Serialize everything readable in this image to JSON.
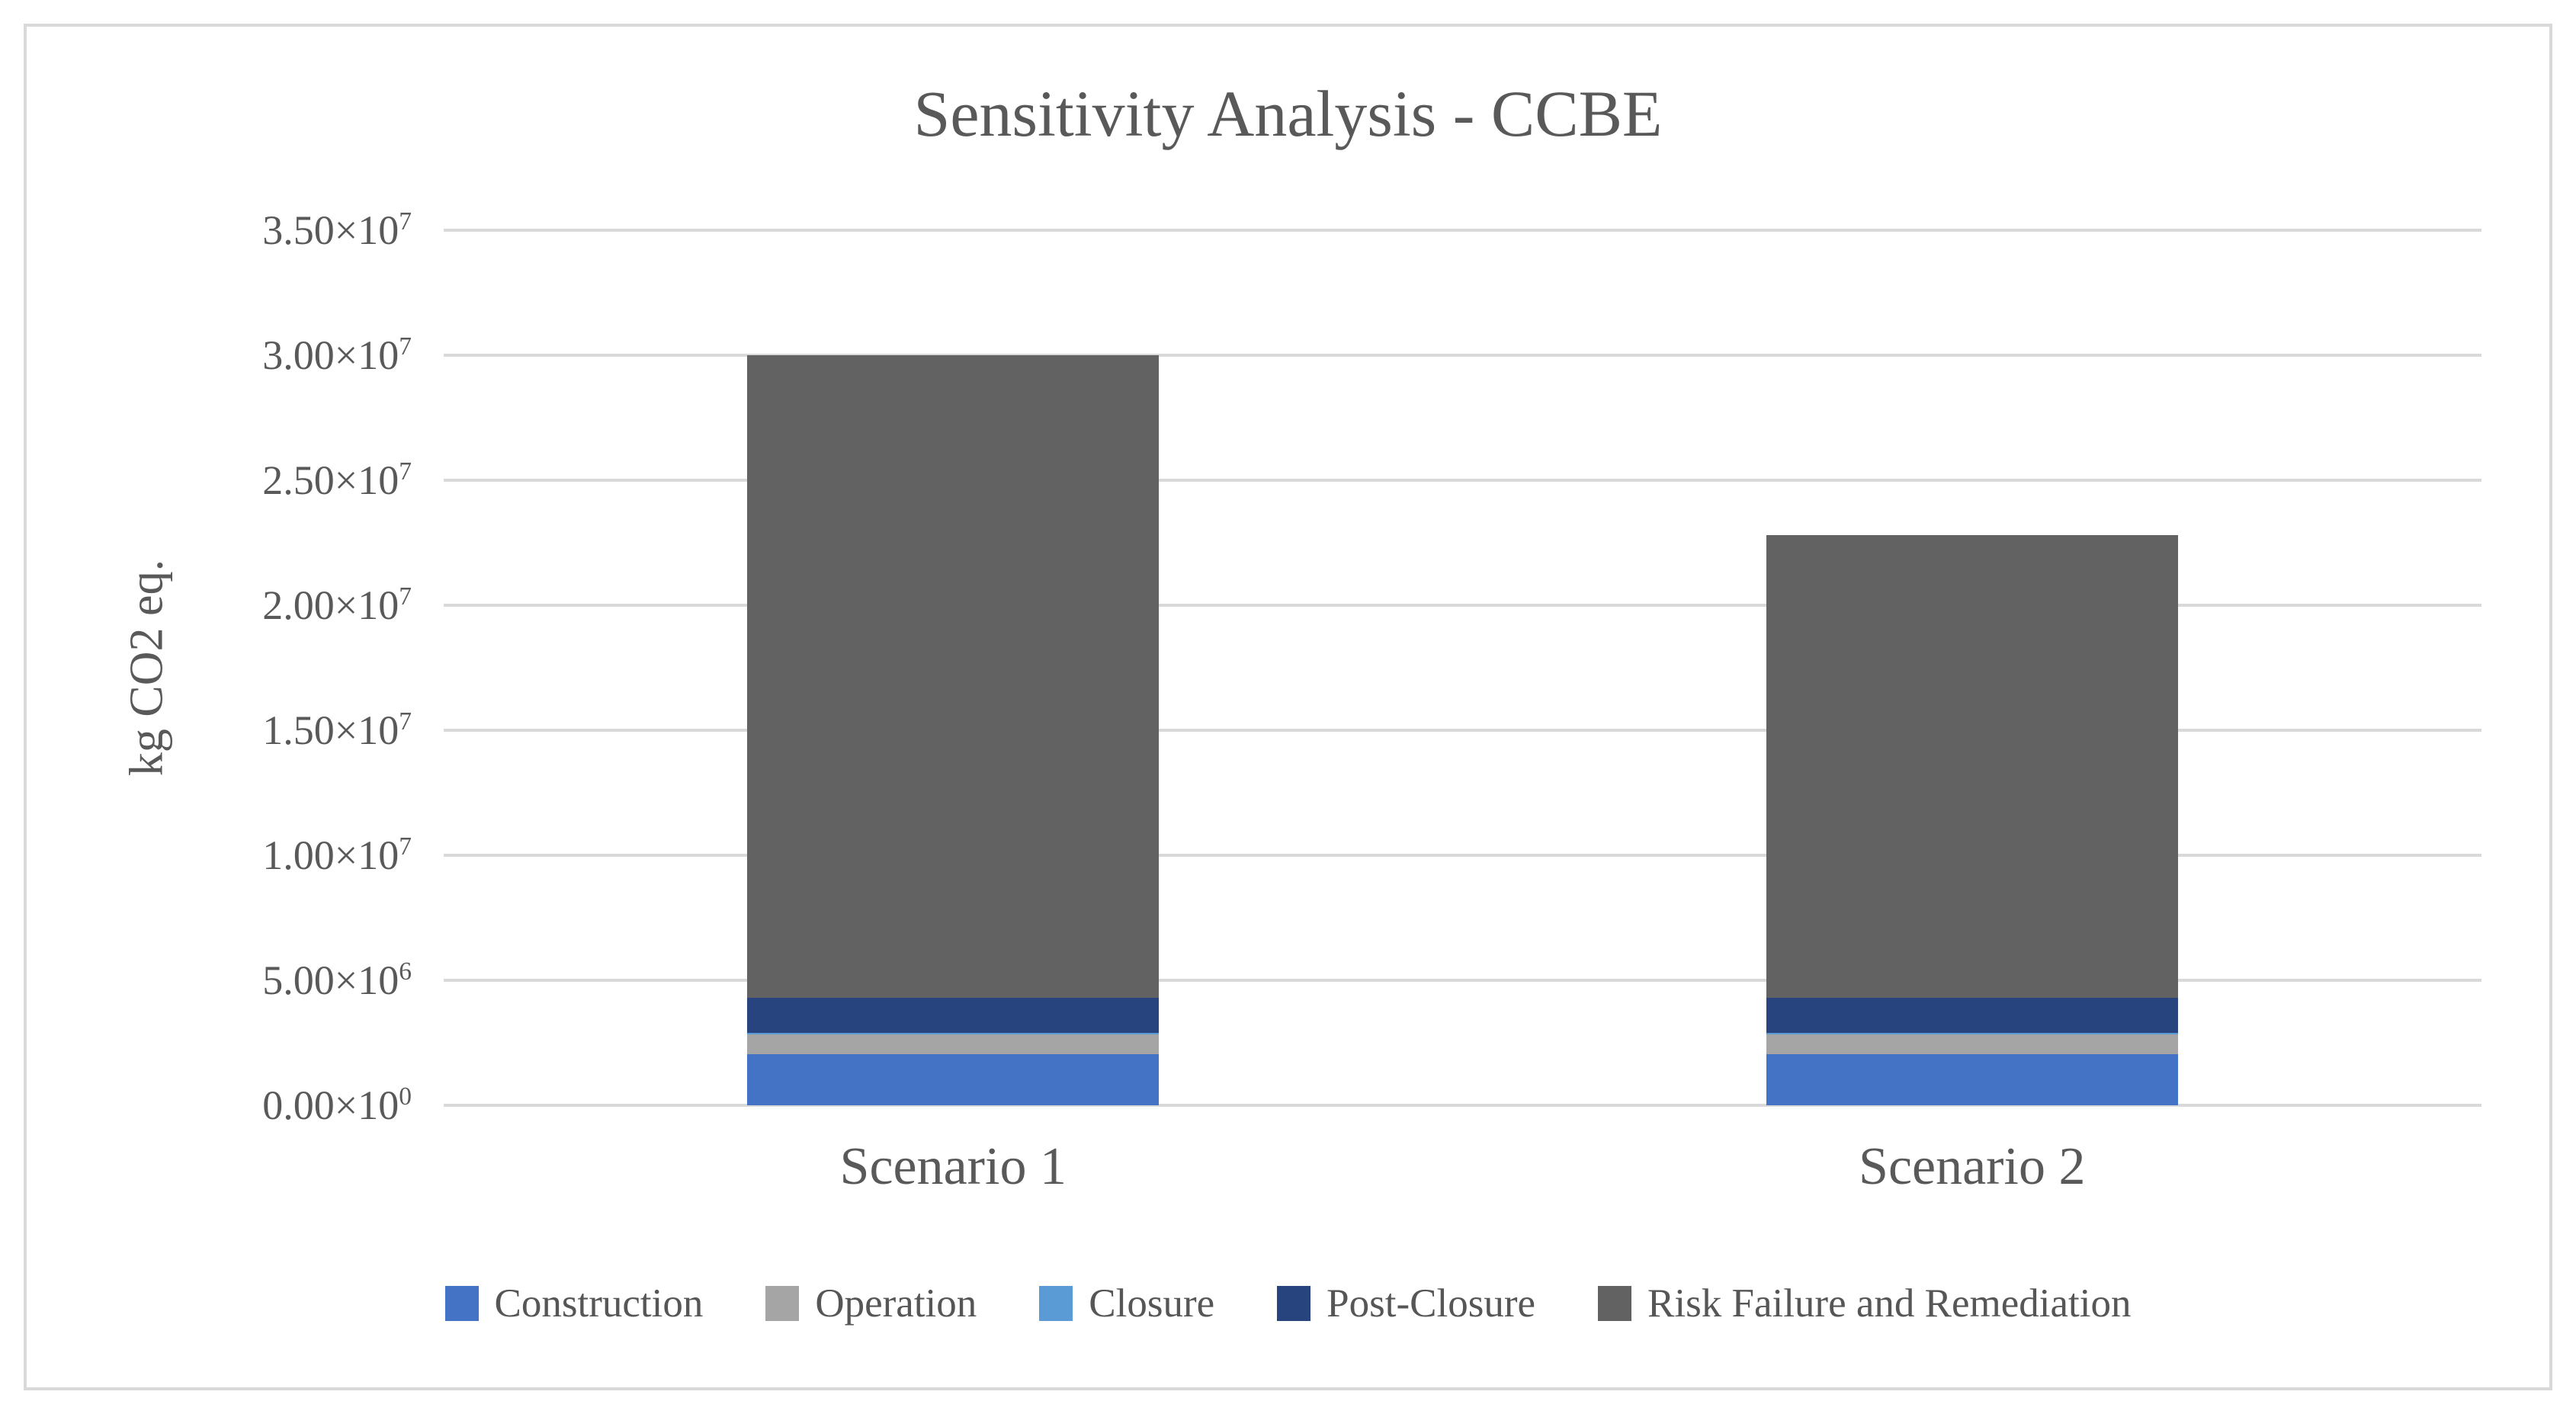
{
  "figure": {
    "background_color": "#FFFFFF",
    "border_color": "#D9D9D9"
  },
  "chart_data": {
    "type": "bar",
    "stacked": true,
    "title": "Sensitivity Analysis - CCBE",
    "xlabel": "",
    "ylabel": "kg CO2 eq.",
    "categories": [
      "Scenario 1",
      "Scenario 2"
    ],
    "series": [
      {
        "name": "Construction",
        "color": "#4472C4",
        "values": [
          2050000,
          2050000
        ]
      },
      {
        "name": "Operation",
        "color": "#A5A5A5",
        "values": [
          780000,
          780000
        ]
      },
      {
        "name": "Closure",
        "color": "#5B9BD5",
        "values": [
          70000,
          70000
        ]
      },
      {
        "name": "Post-Closure",
        "color": "#27447E",
        "values": [
          1400000,
          1400000
        ]
      },
      {
        "name": "Risk Failure and Remediation",
        "color": "#626262",
        "values": [
          25700000,
          18500000
        ]
      }
    ],
    "totals": [
      30000000,
      22800000
    ],
    "ylim": [
      0,
      35000000
    ],
    "y_ticks": [
      {
        "mantissa": "0.00×10",
        "exp": "0",
        "value": 0
      },
      {
        "mantissa": "5.00×10",
        "exp": "6",
        "value": 5000000
      },
      {
        "mantissa": "1.00×10",
        "exp": "7",
        "value": 10000000
      },
      {
        "mantissa": "1.50×10",
        "exp": "7",
        "value": 15000000
      },
      {
        "mantissa": "2.00×10",
        "exp": "7",
        "value": 20000000
      },
      {
        "mantissa": "2.50×10",
        "exp": "7",
        "value": 25000000
      },
      {
        "mantissa": "3.00×10",
        "exp": "7",
        "value": 30000000
      },
      {
        "mantissa": "3.50×10",
        "exp": "7",
        "value": 35000000
      }
    ],
    "grid": true,
    "gridline_color": "#D9D9D9",
    "text_color": "#595959",
    "legend_position": "bottom"
  }
}
